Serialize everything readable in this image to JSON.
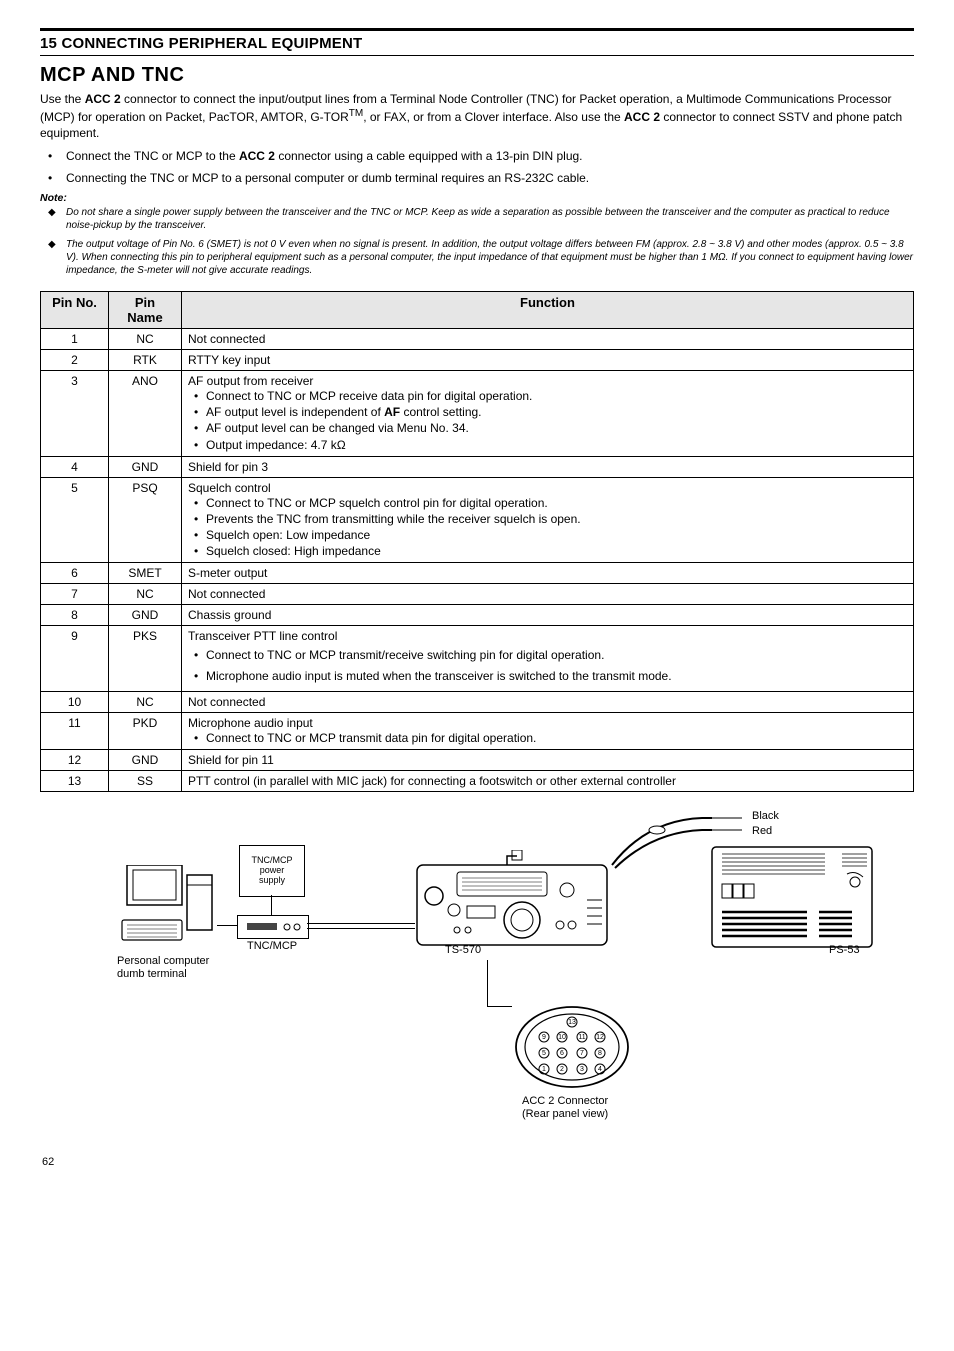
{
  "section_header": "15 CONNECTING PERIPHERAL EQUIPMENT",
  "title": "MCP AND TNC",
  "intro_html": "Use the <b>ACC 2</b> connector to connect the input/output lines from a Terminal Node Controller (TNC) for Packet operation, a Multimode Communications Processor (MCP) for operation on Packet, PacTOR, AMTOR, G-TOR<sup>TM</sup>, or FAX, or from a Clover interface.  Also use the <b>ACC 2</b> connector to connect SSTV and phone patch equipment.",
  "bullets": [
    "Connect the TNC or MCP to the <b>ACC 2</b> connector using a cable equipped with a 13-pin DIN plug.",
    "Connecting the TNC or MCP to a personal computer or dumb terminal requires an RS-232C cable."
  ],
  "note_label": "Note:",
  "notes": [
    "Do not share a single power supply between the transceiver and the TNC or MCP.  Keep as wide a separation as possible between the transceiver and the computer as practical to reduce noise-pickup by the transceiver.",
    "The output voltage of Pin No. 6 (SMET) is not 0 V even when no signal is present.  In addition, the output voltage differs between FM (approx. 2.8 ~ 3.8 V) and other modes (approx. 0.5 ~ 3.8 V).  When connecting this pin to peripheral equipment such as a personal computer, the input impedance of that equipment must be higher than 1 MΩ.  If you connect to equipment having lower impedance, the S-meter will not give accurate readings."
  ],
  "table": {
    "headers": [
      "Pin No.",
      "Pin\nName",
      "Function"
    ],
    "rows": [
      {
        "no": "1",
        "name": "NC",
        "fn": "Not connected"
      },
      {
        "no": "2",
        "name": "RTK",
        "fn": "RTTY key input"
      },
      {
        "no": "3",
        "name": "ANO",
        "fn_main": "AF output from receiver",
        "fn_sub": [
          "Connect to TNC or MCP receive data pin for digital operation.",
          "AF output level is independent of <b>AF</b> control setting.",
          "AF output level can be changed via Menu No. 34.",
          "Output impedance: 4.7 kΩ"
        ]
      },
      {
        "no": "4",
        "name": "GND",
        "fn": "Shield for pin 3"
      },
      {
        "no": "5",
        "name": "PSQ",
        "fn_main": "Squelch control",
        "fn_sub": [
          "Connect to TNC or MCP squelch control pin for digital operation.",
          "Prevents the TNC from transmitting while the receiver squelch is open.",
          "Squelch open: Low impedance",
          "Squelch closed: High impedance"
        ]
      },
      {
        "no": "6",
        "name": "SMET",
        "fn": "S-meter output"
      },
      {
        "no": "7",
        "name": "NC",
        "fn": "Not connected"
      },
      {
        "no": "8",
        "name": "GND",
        "fn": "Chassis ground"
      },
      {
        "no": "9",
        "name": "PKS",
        "fn_main": "Transceiver PTT line control",
        "fn_sub": [
          "Connect to TNC or MCP transmit/receive switching pin for digital operation.",
          "Microphone audio input is muted when the transceiver is switched to the transmit mode."
        ],
        "spaced": true
      },
      {
        "no": "10",
        "name": "NC",
        "fn": "Not connected"
      },
      {
        "no": "11",
        "name": "PKD",
        "fn_main": "Microphone audio input",
        "fn_sub": [
          "Connect to TNC or MCP transmit data pin for digital operation."
        ]
      },
      {
        "no": "12",
        "name": "GND",
        "fn": "Shield for pin 11"
      },
      {
        "no": "13",
        "name": "SS",
        "fn": "PTT control (in parallel with MIC jack) for connecting a footswitch or other external controller"
      }
    ]
  },
  "diagram": {
    "pc_label": "Personal computer\ndumb terminal",
    "tnc_label": "TNC/MCP",
    "ps_label": "TNC/MCP\npower\nsupply",
    "ts570_label": "TS-570",
    "ps53_label": "PS-53",
    "black_label": "Black",
    "red_label": "Red",
    "connector_label": "ACC 2 Connector\n(Rear panel view)"
  },
  "page_number": "62"
}
